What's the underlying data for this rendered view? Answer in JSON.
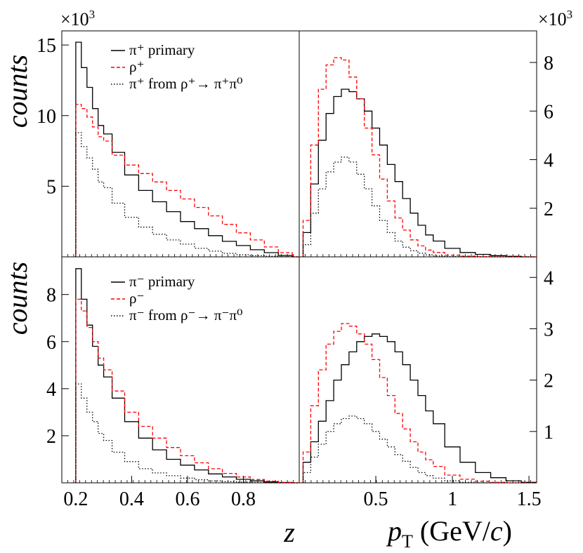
{
  "figure": {
    "xlabel_left": "z",
    "xlabel_right_symbol": "p",
    "xlabel_right_sub": "T",
    "xlabel_right_unit_a": " (GeV/",
    "xlabel_right_unit_c": "c",
    "xlabel_right_unit_b": ")",
    "ylabel_top": "counts",
    "ylabel_bottom": "counts",
    "multiplier_left_base": "×10",
    "multiplier_left_exp": "3",
    "multiplier_right_base": "×10",
    "multiplier_right_exp": "3"
  },
  "legend_top": [
    {
      "label": "π⁺ primary",
      "style": "solid"
    },
    {
      "label": "ρ⁺",
      "style": "dashed"
    },
    {
      "label": "π⁺ from ρ⁺→ π⁺π⁰",
      "style": "dotted"
    }
  ],
  "legend_bottom": [
    {
      "label": "π⁻ primary",
      "style": "solid"
    },
    {
      "label": "ρ⁻",
      "style": "dashed"
    },
    {
      "label": "π⁻ from ρ⁻→ π⁻π⁰",
      "style": "dotted"
    }
  ],
  "colors": {
    "solid": "#000000",
    "dashed": "#ff0000",
    "dotted": "#000000"
  },
  "chart_data": [
    {
      "type": "line",
      "panel": "top-left",
      "title": "",
      "xlabel": "z",
      "ylabel": "counts (×10^3)",
      "xlim": [
        0.15,
        1.0
      ],
      "ylim": [
        0,
        16
      ],
      "yticks": [
        5,
        10,
        15
      ],
      "xticks": [],
      "x": [
        0.21,
        0.23,
        0.25,
        0.27,
        0.29,
        0.31,
        0.35,
        0.4,
        0.45,
        0.5,
        0.55,
        0.6,
        0.65,
        0.7,
        0.75,
        0.8,
        0.85,
        0.9,
        0.95,
        1.0
      ],
      "series": [
        {
          "name": "π⁺ primary",
          "style": "solid",
          "values": [
            15.2,
            13.4,
            12.0,
            10.5,
            9.3,
            8.7,
            7.4,
            5.8,
            4.7,
            3.9,
            3.2,
            2.5,
            2.0,
            1.5,
            1.1,
            0.8,
            0.5,
            0.3,
            0.1,
            0.0
          ]
        },
        {
          "name": "ρ⁺",
          "style": "dashed",
          "values": [
            10.8,
            10.5,
            9.9,
            9.2,
            8.5,
            8.2,
            7.2,
            6.5,
            5.9,
            5.3,
            4.7,
            4.1,
            3.5,
            2.9,
            2.3,
            1.7,
            1.2,
            0.7,
            0.3,
            0.0
          ]
        },
        {
          "name": "π⁺ from ρ⁺→ π⁺π⁰",
          "style": "dotted",
          "values": [
            8.8,
            7.8,
            7.0,
            6.2,
            5.3,
            4.9,
            3.8,
            2.8,
            2.1,
            1.6,
            1.2,
            0.9,
            0.6,
            0.4,
            0.25,
            0.15,
            0.08,
            0.04,
            0.01,
            0.0
          ]
        }
      ]
    },
    {
      "type": "line",
      "panel": "top-right",
      "title": "",
      "xlabel": "pT (GeV/c)",
      "ylabel": "counts (×10^3)",
      "xlim": [
        0.0,
        1.55
      ],
      "ylim": [
        0,
        9.3
      ],
      "yticks": [
        2,
        4,
        6,
        8
      ],
      "xticks": [],
      "x": [
        0.05,
        0.1,
        0.15,
        0.2,
        0.25,
        0.3,
        0.35,
        0.4,
        0.45,
        0.5,
        0.55,
        0.6,
        0.65,
        0.7,
        0.75,
        0.8,
        0.85,
        0.9,
        1.0,
        1.1,
        1.2,
        1.3,
        1.4,
        1.5
      ],
      "series": [
        {
          "name": "π⁺ primary",
          "style": "solid",
          "values": [
            1.0,
            3.0,
            4.8,
            5.9,
            6.6,
            6.9,
            6.8,
            6.5,
            6.0,
            5.3,
            4.6,
            3.8,
            3.1,
            2.4,
            1.8,
            1.3,
            0.9,
            0.65,
            0.35,
            0.18,
            0.1,
            0.05,
            0.02,
            0.0
          ]
        },
        {
          "name": "ρ⁺",
          "style": "dashed",
          "values": [
            1.5,
            4.6,
            6.9,
            7.9,
            8.2,
            8.1,
            7.4,
            6.5,
            5.3,
            4.2,
            3.2,
            2.3,
            1.6,
            1.1,
            0.7,
            0.45,
            0.28,
            0.18,
            0.07,
            0.03,
            0.01,
            0.0,
            0.0,
            0.0
          ]
        },
        {
          "name": "π⁺ from ρ⁺→ π⁺π⁰",
          "style": "dotted",
          "values": [
            0.5,
            1.8,
            2.8,
            3.5,
            3.9,
            4.1,
            3.9,
            3.4,
            2.8,
            2.1,
            1.5,
            1.0,
            0.65,
            0.4,
            0.25,
            0.15,
            0.08,
            0.04,
            0.01,
            0.0,
            0.0,
            0.0,
            0.0,
            0.0
          ]
        }
      ]
    },
    {
      "type": "line",
      "panel": "bottom-left",
      "title": "",
      "xlabel": "z",
      "ylabel": "counts (×10^3)",
      "xlim": [
        0.15,
        1.0
      ],
      "ylim": [
        0,
        9.6
      ],
      "yticks": [
        2,
        4,
        6,
        8
      ],
      "xticks": [
        0.2,
        0.4,
        0.6,
        0.8
      ],
      "x": [
        0.21,
        0.23,
        0.25,
        0.27,
        0.29,
        0.31,
        0.35,
        0.4,
        0.45,
        0.5,
        0.55,
        0.6,
        0.65,
        0.7,
        0.75,
        0.8,
        0.85,
        0.9,
        0.95,
        1.0
      ],
      "series": [
        {
          "name": "π⁻ primary",
          "style": "solid",
          "values": [
            9.1,
            7.8,
            6.7,
            5.8,
            5.0,
            4.5,
            3.6,
            2.6,
            1.9,
            1.4,
            1.0,
            0.75,
            0.55,
            0.38,
            0.25,
            0.15,
            0.08,
            0.04,
            0.01,
            0.0
          ]
        },
        {
          "name": "ρ⁻",
          "style": "dashed",
          "values": [
            7.8,
            7.3,
            6.6,
            6.0,
            5.3,
            4.8,
            3.9,
            3.0,
            2.4,
            1.9,
            1.5,
            1.15,
            0.85,
            0.6,
            0.4,
            0.25,
            0.14,
            0.07,
            0.02,
            0.0
          ]
        },
        {
          "name": "π⁻ from ρ⁻→ π⁻π⁰",
          "style": "dotted",
          "values": [
            4.2,
            3.6,
            3.0,
            2.6,
            2.1,
            1.8,
            1.3,
            0.9,
            0.6,
            0.42,
            0.3,
            0.2,
            0.13,
            0.08,
            0.05,
            0.03,
            0.01,
            0.0,
            0.0,
            0.0
          ]
        }
      ]
    },
    {
      "type": "line",
      "panel": "bottom-right",
      "title": "",
      "xlabel": "pT (GeV/c)",
      "ylabel": "counts (×10^3)",
      "xlim": [
        0.0,
        1.55
      ],
      "ylim": [
        0,
        4.4
      ],
      "yticks": [
        1,
        2,
        3,
        4
      ],
      "xticks": [
        0.5,
        1,
        1.5
      ],
      "x": [
        0.05,
        0.1,
        0.15,
        0.2,
        0.25,
        0.3,
        0.35,
        0.4,
        0.45,
        0.5,
        0.55,
        0.6,
        0.65,
        0.7,
        0.75,
        0.8,
        0.85,
        0.9,
        1.0,
        1.1,
        1.2,
        1.3,
        1.4,
        1.5
      ],
      "series": [
        {
          "name": "π⁻ primary",
          "style": "solid",
          "values": [
            0.4,
            0.8,
            1.2,
            1.6,
            2.0,
            2.3,
            2.55,
            2.75,
            2.85,
            2.9,
            2.85,
            2.75,
            2.55,
            2.3,
            2.0,
            1.7,
            1.4,
            1.15,
            0.7,
            0.4,
            0.2,
            0.1,
            0.04,
            0.01
          ]
        },
        {
          "name": "ρ⁻",
          "style": "dashed",
          "values": [
            0.6,
            1.5,
            2.2,
            2.7,
            2.95,
            3.1,
            3.05,
            2.9,
            2.7,
            2.4,
            2.05,
            1.7,
            1.35,
            1.05,
            0.8,
            0.6,
            0.45,
            0.32,
            0.15,
            0.07,
            0.03,
            0.01,
            0.0,
            0.0
          ]
        },
        {
          "name": "π⁻ from ρ⁻→ π⁻π⁰",
          "style": "dotted",
          "values": [
            0.2,
            0.5,
            0.75,
            1.0,
            1.15,
            1.25,
            1.3,
            1.25,
            1.15,
            1.0,
            0.85,
            0.7,
            0.55,
            0.42,
            0.3,
            0.2,
            0.14,
            0.09,
            0.04,
            0.01,
            0.0,
            0.0,
            0.0,
            0.0
          ]
        }
      ]
    }
  ]
}
